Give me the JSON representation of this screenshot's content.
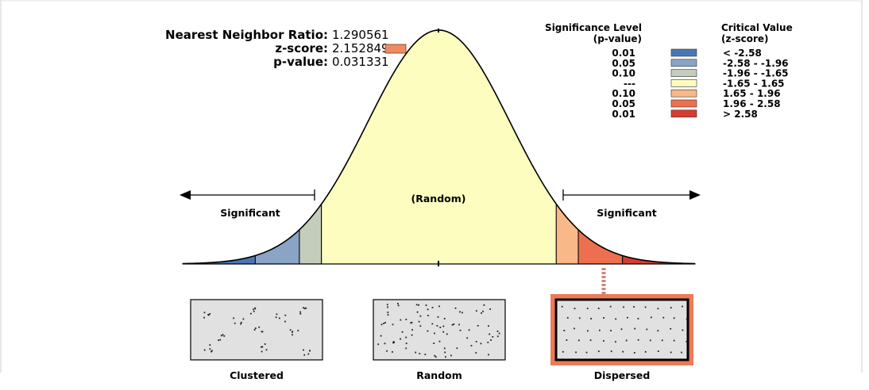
{
  "result": {
    "ratio_label": "Nearest Neighbor Ratio:",
    "ratio_value": "1.290561",
    "z_label": "z-score:",
    "z_value": "2.152849",
    "z_marker_color": "#ef8a62",
    "p_label": "p-value:",
    "p_value": "0.031331"
  },
  "legend": {
    "sig_header_1": "Significance Level",
    "sig_header_2": "(p-value)",
    "crit_header_1": "Critical Value",
    "crit_header_2": "(z-score)",
    "rows": [
      {
        "p": "0.01",
        "z": "< -2.58",
        "color": "#4a77b4"
      },
      {
        "p": "0.05",
        "z": "-2.58 - -1.96",
        "color": "#8aa4c6"
      },
      {
        "p": "0.10",
        "z": "-1.96 - -1.65",
        "color": "#c4ccbc"
      },
      {
        "p": "---",
        "z": "-1.65 - 1.65",
        "color": "#fdfdc0"
      },
      {
        "p": "0.10",
        "z": "1.65 - 1.96",
        "color": "#f9b887"
      },
      {
        "p": "0.05",
        "z": "1.96 - 2.58",
        "color": "#ec7050"
      },
      {
        "p": "0.01",
        "z": "> 2.58",
        "color": "#d83b2f"
      }
    ]
  },
  "curve": {
    "random_label": "(Random)",
    "significant_left": "Significant",
    "significant_right": "Significant"
  },
  "panels": [
    {
      "label": "Clustered",
      "highlight": false
    },
    {
      "label": "Random",
      "highlight": false
    },
    {
      "label": "Dispersed",
      "highlight": true
    }
  ],
  "chart_data": {
    "type": "area",
    "distribution": "standard normal",
    "x_range": [
      -3.6,
      3.6
    ],
    "bands": [
      {
        "from": -3.6,
        "to": -2.58,
        "color": "#4a77b4"
      },
      {
        "from": -2.58,
        "to": -1.96,
        "color": "#8aa4c6"
      },
      {
        "from": -1.96,
        "to": -1.65,
        "color": "#c4ccbc"
      },
      {
        "from": -1.65,
        "to": 1.65,
        "color": "#fdfdc0"
      },
      {
        "from": 1.65,
        "to": 1.96,
        "color": "#f9b887"
      },
      {
        "from": 1.96,
        "to": 2.58,
        "color": "#ec7050"
      },
      {
        "from": 2.58,
        "to": 3.6,
        "color": "#d83b2f"
      }
    ],
    "observed_z": 2.152849
  }
}
